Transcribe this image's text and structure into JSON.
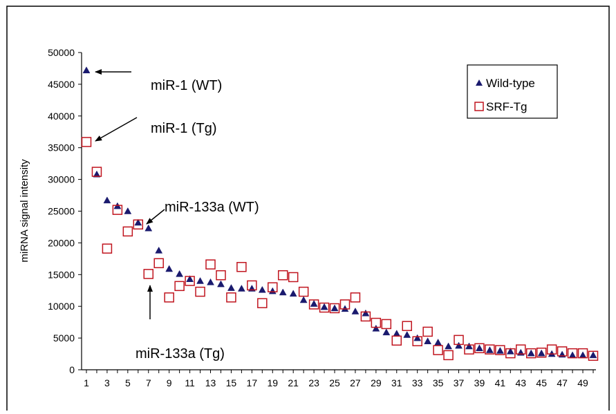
{
  "chart_data": {
    "type": "scatter",
    "xlabel": "",
    "ylabel": "miRNA signal intensity",
    "ylim": [
      0,
      50000
    ],
    "xlim": [
      1,
      50
    ],
    "yticks": [
      0,
      5000,
      10000,
      15000,
      20000,
      25000,
      30000,
      35000,
      40000,
      45000,
      50000
    ],
    "xticks": [
      1,
      3,
      5,
      7,
      9,
      11,
      13,
      15,
      17,
      19,
      21,
      23,
      25,
      27,
      29,
      31,
      33,
      35,
      37,
      39,
      41,
      43,
      45,
      47,
      49
    ],
    "grid": false,
    "legend_position": "top-right",
    "series": [
      {
        "name": "Wild-type",
        "marker": "triangle",
        "color": "#1a1a6e",
        "x": [
          1,
          2,
          3,
          4,
          5,
          6,
          7,
          8,
          9,
          10,
          11,
          12,
          13,
          14,
          15,
          16,
          17,
          18,
          19,
          20,
          21,
          22,
          23,
          24,
          25,
          26,
          27,
          28,
          29,
          30,
          31,
          32,
          33,
          34,
          35,
          36,
          37,
          38,
          39,
          40,
          41,
          42,
          43,
          44,
          45,
          46,
          47,
          48,
          49,
          50
        ],
        "y": [
          47200,
          30800,
          26700,
          25800,
          25000,
          23200,
          22300,
          18800,
          15900,
          15100,
          14300,
          14000,
          13800,
          13500,
          12900,
          12800,
          12800,
          12600,
          12400,
          12200,
          12000,
          11000,
          10400,
          9900,
          9700,
          9600,
          9200,
          8900,
          6500,
          5900,
          5700,
          5500,
          5000,
          4500,
          4300,
          3700,
          3800,
          3700,
          3400,
          3100,
          3000,
          2900,
          2700,
          2600,
          2600,
          2500,
          2400,
          2300,
          2300,
          2300
        ]
      },
      {
        "name": "SRF-Tg",
        "marker": "square",
        "color": "#c0141e",
        "x": [
          1,
          2,
          3,
          4,
          5,
          6,
          7,
          8,
          9,
          10,
          11,
          12,
          13,
          14,
          15,
          16,
          17,
          18,
          19,
          20,
          21,
          22,
          23,
          24,
          25,
          26,
          27,
          28,
          29,
          30,
          31,
          32,
          33,
          34,
          35,
          36,
          37,
          38,
          39,
          40,
          41,
          42,
          43,
          44,
          45,
          46,
          47,
          48,
          49,
          50
        ],
        "y": [
          35900,
          31200,
          19100,
          25200,
          21800,
          22900,
          15100,
          16800,
          11400,
          13200,
          14000,
          12300,
          16600,
          14900,
          11400,
          16200,
          13300,
          10500,
          13000,
          14900,
          14600,
          12300,
          10300,
          9800,
          9700,
          10300,
          11400,
          8400,
          7400,
          7200,
          4600,
          6900,
          4500,
          6000,
          3100,
          2300,
          4700,
          3200,
          3400,
          3200,
          3100,
          2600,
          3200,
          2600,
          2700,
          3200,
          2900,
          2600,
          2600,
          2200
        ]
      }
    ],
    "annotations": [
      {
        "text": "miR-1 (WT)",
        "series": "Wild-type",
        "x": 1
      },
      {
        "text": "miR-1 (Tg)",
        "series": "SRF-Tg",
        "x": 1
      },
      {
        "text": "miR-133a (WT)",
        "series": "Wild-type",
        "x": 7
      },
      {
        "text": "miR-133a (Tg)",
        "series": "SRF-Tg",
        "x": 7
      }
    ]
  }
}
